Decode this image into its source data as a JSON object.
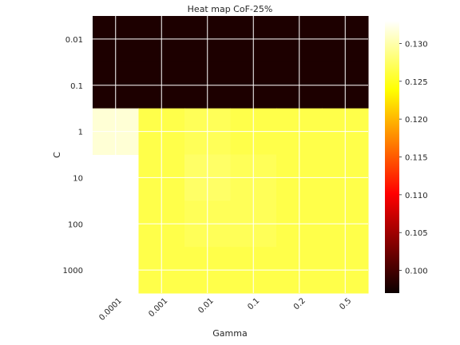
{
  "chart_data": {
    "type": "heatmap",
    "title": "Heat map CoF-25%",
    "xlabel": "Gamma",
    "ylabel": "C",
    "x_categories": [
      "0.0001",
      "0.001",
      "0.01",
      "0.1",
      "0.2",
      "0.5"
    ],
    "y_categories": [
      "0.01",
      "0.1",
      "1",
      "10",
      "100",
      "1000"
    ],
    "values": [
      [
        0.097,
        0.097,
        0.097,
        0.097,
        0.097,
        0.097
      ],
      [
        0.097,
        0.097,
        0.097,
        0.097,
        0.097,
        0.097
      ],
      [
        0.1315,
        0.1265,
        0.127,
        0.1265,
        0.1265,
        0.1265
      ],
      [
        null,
        0.1265,
        0.1275,
        0.127,
        0.1265,
        0.1265
      ],
      [
        null,
        0.1265,
        0.127,
        0.127,
        0.1265,
        0.1265
      ],
      [
        null,
        0.1265,
        0.1265,
        0.1265,
        0.1265,
        0.1265
      ]
    ],
    "colormap": "hot",
    "colorbar": {
      "range": [
        0.097,
        0.133
      ],
      "ticks": [
        "0.100",
        "0.105",
        "0.110",
        "0.115",
        "0.120",
        "0.125",
        "0.130"
      ]
    },
    "grid": true
  }
}
